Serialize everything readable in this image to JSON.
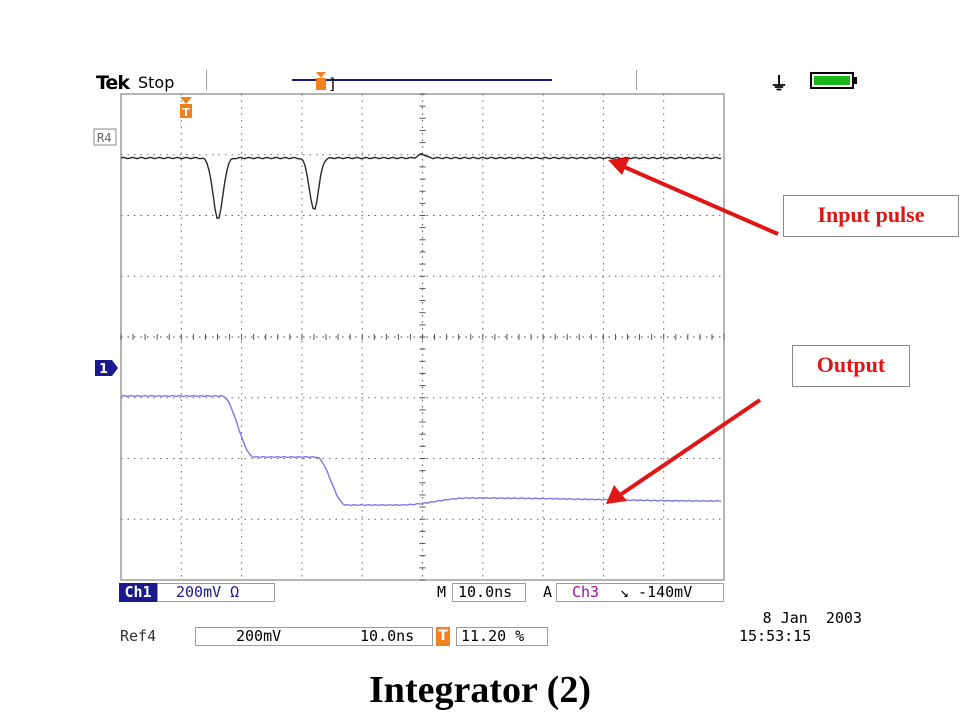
{
  "header": {
    "brand": "Tek",
    "run_state": "Stop",
    "trigger_marker": "T",
    "battery_color": "#19b619"
  },
  "screen": {
    "reference_marker": "R4",
    "ch1_marker": "1",
    "trace_colors": {
      "ref4": "#2a2a2a",
      "ch1": "#7a7ae8"
    }
  },
  "readouts": {
    "ch1_label": "Ch1",
    "ch1_scale": "200mV Ω",
    "m_label": "M",
    "timebase": "10.0ns",
    "a_label": "A",
    "trigger_source": "Ch3",
    "trigger_level": "↘ -140mV",
    "ref4_label": "Ref4",
    "ref4_scale": "200mV",
    "ref4_time": "10.0ns",
    "trigger_position_marker": "T",
    "trigger_position": "11.20 %",
    "date": "8 Jan  2003",
    "time": "15:53:15"
  },
  "annotations": {
    "input_label": "Input pulse",
    "output_label": "Output",
    "title": "Integrator (2)",
    "arrow_color": "#e01515"
  }
}
